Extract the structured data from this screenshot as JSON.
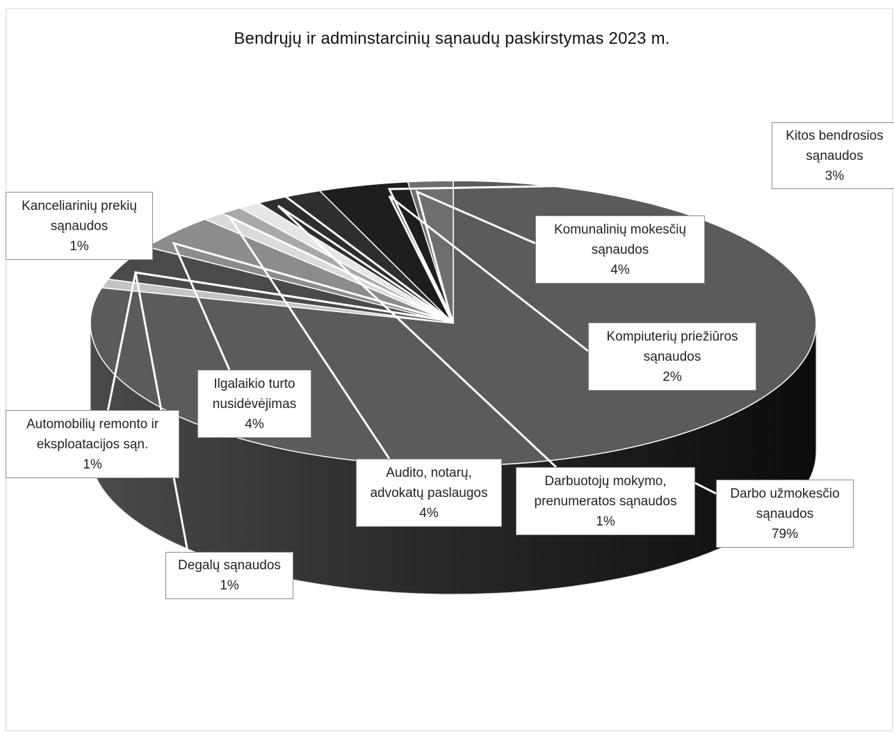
{
  "chart_data": {
    "type": "pie",
    "title": "Bendrųjų ir adminstarcinių sąnaudų paskirstymas 2023 m.",
    "slices": [
      {
        "label": "Darbo užmokesčio sąnaudos",
        "value": 79,
        "value_label": "79%",
        "color": "#5b5b5b"
      },
      {
        "label": "Darbuotojų mokymo, prenumeratos sąnaudos",
        "value": 1,
        "value_label": "1%",
        "color": "#c4c4c4"
      },
      {
        "label": "Audito, notarų, advokatų paslaugos",
        "value": 4,
        "value_label": "4%",
        "color": "#4a4a4a"
      },
      {
        "label": "Ilgalaikio turto nusidėvėjimas",
        "value": 4,
        "value_label": "4%",
        "color": "#8c8c8c"
      },
      {
        "label": "Degalų sąnaudos",
        "value": 1,
        "value_label": "1%",
        "color": "#dadada"
      },
      {
        "label": "Automobilių remonto ir eksploatacijos sąn.",
        "value": 1,
        "value_label": "1%",
        "color": "#a8a8a8"
      },
      {
        "label": "Kanceliarinių prekių sąnaudos",
        "value": 1,
        "value_label": "1%",
        "color": "#e6e6e6"
      },
      {
        "label": "Kitos bendrosios sąnaudos",
        "value": 3,
        "value_label": "3%",
        "color": "#2e2e2e"
      },
      {
        "label": "Komunalinių mokesčių sąnaudos",
        "value": 4,
        "value_label": "4%",
        "color": "#1e1e1e"
      },
      {
        "label": "Kompiuterių priežiūros sąnaudos",
        "value": 2,
        "value_label": "2%",
        "color": "#6e6e6e"
      }
    ],
    "labels": [
      {
        "lines": [
          "Kitos bendrosios",
          "sąnaudos",
          "3%"
        ]
      },
      {
        "lines": [
          "Kanceliarinių prekių",
          "sąnaudos",
          "1%"
        ]
      },
      {
        "lines": [
          "Komunalinių mokesčių",
          "sąnaudos",
          "4%"
        ]
      },
      {
        "lines": [
          "Kompiuterių priežiūros",
          "sąnaudos",
          "2%"
        ]
      },
      {
        "lines": [
          "Ilgalaikio  turto",
          "nusidėvėjimas",
          "4%"
        ]
      },
      {
        "lines": [
          "Automobilių remonto ir",
          "eksploatacijos sąn.",
          "1%"
        ]
      },
      {
        "lines": [
          "Audito, notarų,",
          "advokatų paslaugos",
          "4%"
        ]
      },
      {
        "lines": [
          "Darbuotojų mokymo,",
          "prenumeratos sąnaudos",
          "1%"
        ]
      },
      {
        "lines": [
          "Darbo užmokesčio",
          "sąnaudos",
          "79%"
        ]
      },
      {
        "lines": [
          "Degalų sąnaudos",
          "1%"
        ]
      }
    ],
    "legend": "none",
    "style": "3d-exploded-pie"
  }
}
